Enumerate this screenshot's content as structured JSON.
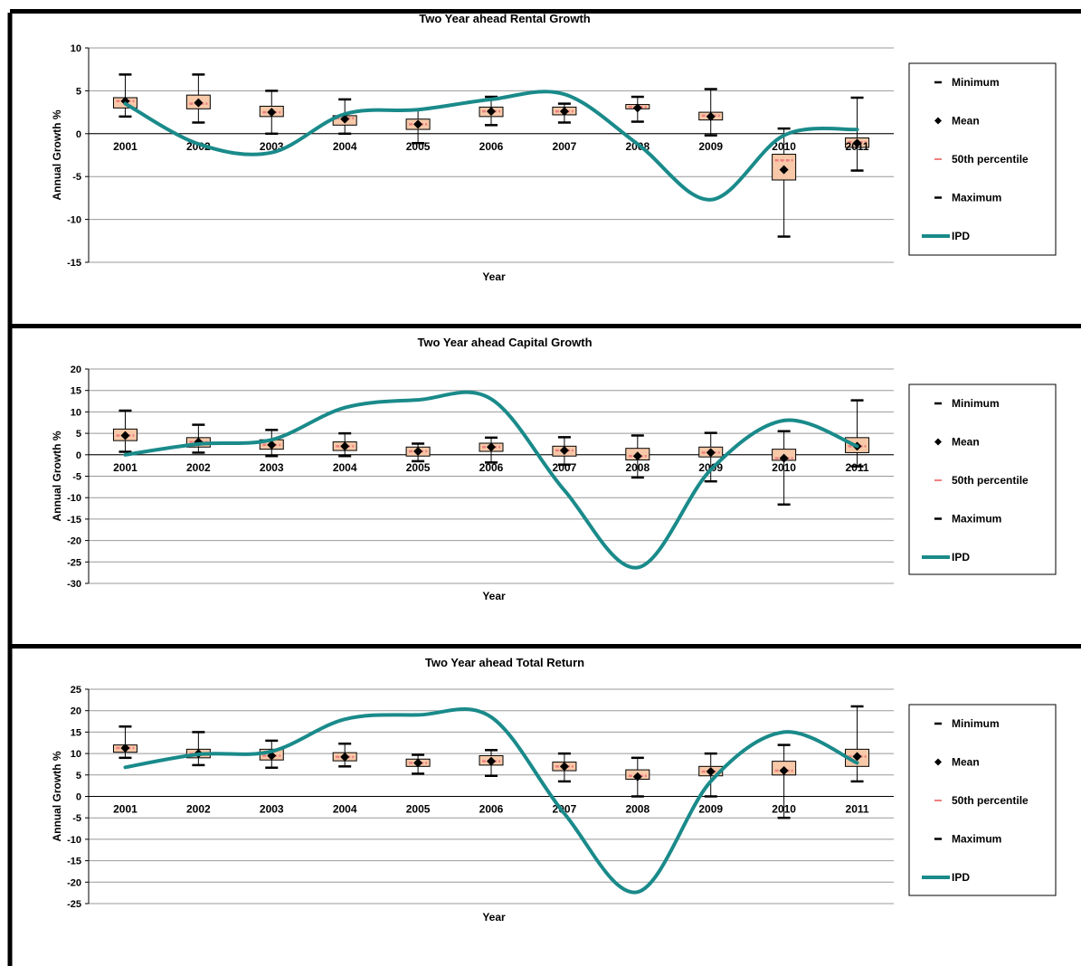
{
  "colors": {
    "ipd_line": "#1a8a8a",
    "box_fill": "#f7c9a8",
    "median_marker": "#f08080",
    "frame": "#000000",
    "grid": "#999999"
  },
  "legend_labels": {
    "minimum": "Minimum",
    "mean": "Mean",
    "median": "50th percentile",
    "maximum": "Maximum",
    "ipd": "IPD"
  },
  "chart_data": [
    {
      "type": "box-whisker-with-line",
      "title": "Two Year ahead Rental Growth",
      "xlabel": "Year",
      "ylabel": "Annual Growth %",
      "ylim": [
        -15,
        10
      ],
      "ytick_step": 5,
      "ytick_labels": [
        "10",
        "5",
        "0",
        "-5",
        "-10",
        "-15"
      ],
      "grid": true,
      "legend_position": "right",
      "categories": [
        "2001",
        "2002",
        "2003",
        "2004",
        "2005",
        "2006",
        "2007",
        "2008",
        "2009",
        "2010",
        "2011"
      ],
      "min": [
        2,
        1.3,
        0,
        0,
        -1.1,
        1,
        1.3,
        1.4,
        -0.2,
        -12,
        -4.3
      ],
      "q1": [
        3,
        2.9,
        2,
        1,
        0.5,
        2,
        2.2,
        2.9,
        1.6,
        -5.4,
        -1.6
      ],
      "median": [
        3.8,
        3.5,
        2.5,
        1.8,
        1.1,
        2.6,
        2.6,
        3.1,
        2.1,
        -3.1,
        -1
      ],
      "q3": [
        4.2,
        4.5,
        3.2,
        2.1,
        1.7,
        3.1,
        3.1,
        3.4,
        2.5,
        -2.4,
        -0.5
      ],
      "max": [
        6.9,
        6.9,
        5,
        4,
        2.8,
        4.3,
        3.5,
        4.3,
        5.2,
        0.6,
        4.2
      ],
      "mean": [
        3.8,
        3.6,
        2.5,
        1.7,
        1.1,
        2.6,
        2.6,
        3,
        2,
        -4.2,
        -1.1
      ],
      "ipd": [
        3.5,
        -1.2,
        -2.2,
        2.3,
        2.8,
        4,
        4.6,
        -1.2,
        -7.7,
        -0.2,
        0.5
      ]
    },
    {
      "type": "box-whisker-with-line",
      "title": "Two Year ahead Capital Growth",
      "xlabel": "Year",
      "ylabel": "Annual Growth %",
      "ylim": [
        -30,
        20
      ],
      "ytick_step": 5,
      "ytick_labels": [
        "20",
        "15",
        "10",
        "5",
        "0",
        "-5",
        "-10",
        "-15",
        "-20",
        "-25",
        "-30"
      ],
      "grid": true,
      "legend_position": "right",
      "categories": [
        "2001",
        "2002",
        "2003",
        "2004",
        "2005",
        "2006",
        "2007",
        "2008",
        "2009",
        "2010",
        "2011"
      ],
      "min": [
        0.7,
        0.5,
        -0.3,
        -0.3,
        -1.5,
        -1.8,
        -2.3,
        -5.3,
        -6.2,
        -11.6,
        -2.7
      ],
      "q1": [
        3.3,
        1.8,
        1.3,
        1,
        -0.3,
        0.8,
        -0.3,
        -1.2,
        -0.5,
        -1.3,
        0.5
      ],
      "median": [
        4.5,
        3,
        2.3,
        2,
        0.8,
        1.8,
        1,
        -0.3,
        0.5,
        -0.8,
        2
      ],
      "q3": [
        6,
        4,
        3.5,
        3,
        1.8,
        2.7,
        2,
        1.5,
        1.8,
        1.3,
        4
      ],
      "max": [
        10.3,
        7,
        5.8,
        5,
        2.6,
        4,
        4.1,
        4.5,
        5.1,
        5.5,
        12.7
      ],
      "mean": [
        4.5,
        3,
        2.3,
        2,
        0.8,
        1.8,
        1,
        -0.3,
        0.5,
        -0.8,
        2
      ],
      "ipd": [
        0,
        2.5,
        3.5,
        11,
        12.8,
        13,
        -8.3,
        -26.3,
        -3.5,
        8,
        2
      ]
    },
    {
      "type": "box-whisker-with-line",
      "title": "Two Year ahead Total Return",
      "xlabel": "Year",
      "ylabel": "Annual Growth %",
      "ylim": [
        -25,
        25
      ],
      "ytick_step": 5,
      "ytick_labels": [
        "25",
        "20",
        "15",
        "10",
        "5",
        "0",
        "-5",
        "-10",
        "-15",
        "-20",
        "-25"
      ],
      "grid": true,
      "legend_position": "right",
      "categories": [
        "2001",
        "2002",
        "2003",
        "2004",
        "2005",
        "2006",
        "2007",
        "2008",
        "2009",
        "2010",
        "2011"
      ],
      "min": [
        9,
        7.3,
        6.7,
        7,
        5.3,
        4.8,
        3.5,
        0,
        0,
        -5,
        3.5
      ],
      "q1": [
        10.3,
        9,
        8.5,
        8.3,
        7,
        7.3,
        6,
        4,
        4.8,
        5,
        7
      ],
      "median": [
        11.3,
        10,
        9.5,
        9.2,
        7.8,
        8.2,
        7,
        4.8,
        5.8,
        6,
        9.3
      ],
      "q3": [
        12,
        11,
        11,
        10.2,
        8.7,
        9.5,
        8,
        6.2,
        7,
        8.2,
        11
      ],
      "max": [
        16.3,
        15,
        13,
        12.3,
        9.7,
        10.8,
        10,
        9,
        10,
        12,
        21
      ],
      "mean": [
        11.3,
        10,
        9.5,
        9.2,
        7.8,
        8.2,
        7,
        4.6,
        5.8,
        6,
        9.3
      ],
      "ipd": [
        6.8,
        9.8,
        10.5,
        18,
        19,
        18.5,
        -4,
        -22.3,
        3.5,
        15,
        7.8
      ]
    }
  ]
}
